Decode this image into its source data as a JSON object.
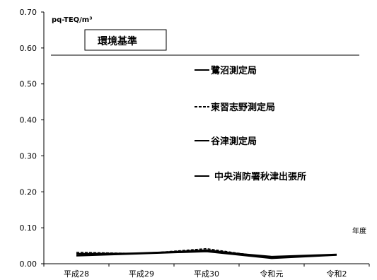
{
  "chart_data": {
    "type": "line",
    "categories": [
      "平成28",
      "平成29",
      "平成30",
      "令和元",
      "令和2"
    ],
    "ylim": [
      0,
      0.7
    ],
    "yticks": [
      "0.00",
      "0.10",
      "0.20",
      "0.30",
      "0.40",
      "0.50",
      "0.60",
      "0.70"
    ],
    "y_unit": "pq-TEQ/m³",
    "x_unit": "年度",
    "standard": {
      "label": "環境基準",
      "value": 0.58
    },
    "grid": false,
    "legend_position": "right-center",
    "series": [
      {
        "name": "鷺沼測定局",
        "values": [
          0.028,
          0.029,
          0.038,
          0.018,
          0.025
        ],
        "color": "#000000",
        "style": "solid"
      },
      {
        "name": "東習志野測定局",
        "values": [
          0.032,
          0.028,
          0.042,
          0.016,
          0.024
        ],
        "color": "#000000",
        "style": "dashed"
      },
      {
        "name": "谷津測定局",
        "values": [
          0.024,
          0.03,
          0.036,
          0.02,
          0.026
        ],
        "color": "#000000",
        "style": "solid"
      },
      {
        "name": "中央消防署秋津出張所",
        "values": [
          0.022,
          0.028,
          0.034,
          0.015,
          0.024
        ],
        "color": "#000000",
        "style": "solid"
      }
    ]
  }
}
